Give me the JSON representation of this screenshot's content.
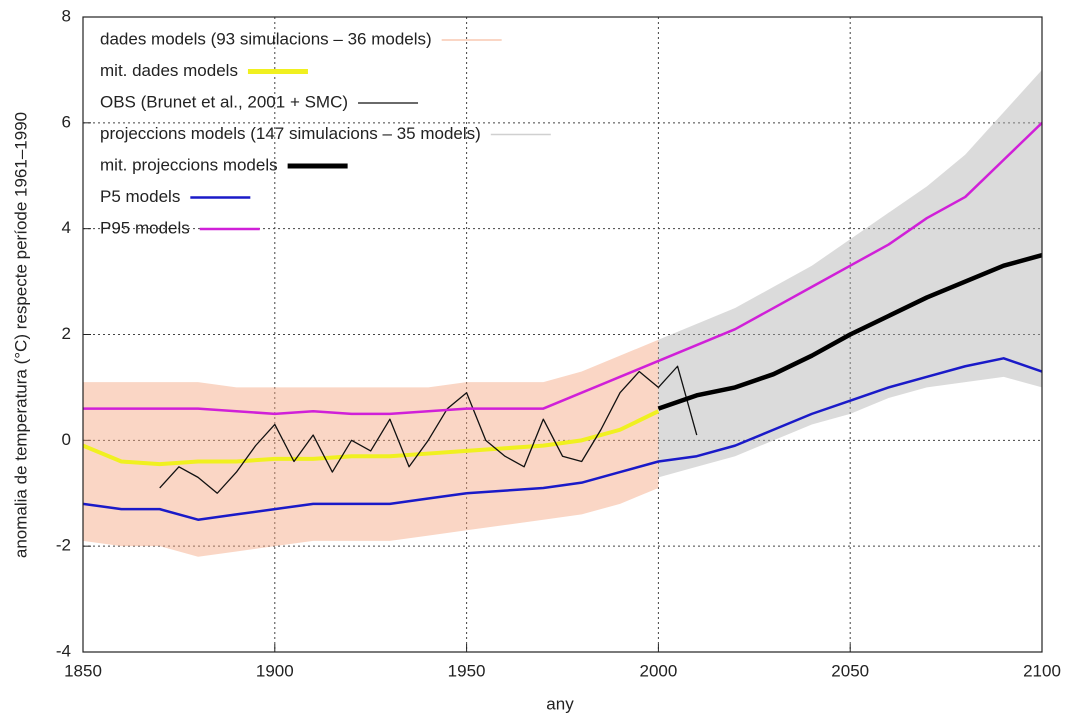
{
  "chart_data": {
    "type": "line",
    "x_label": "any",
    "y_label": "anomalia de temperatura (°C) respecte període 1961–1990",
    "xlim": [
      1850,
      2100
    ],
    "xticks": [
      1850,
      1900,
      1950,
      2000,
      2050,
      2100
    ],
    "ylim": [
      -4,
      8
    ],
    "yticks": [
      -4,
      -2,
      0,
      2,
      4,
      6,
      8
    ],
    "grid": true,
    "legend": "upper left",
    "series": [
      {
        "name": "dades models (93 simulacions – 36 models)",
        "color": "#f4a57f",
        "x": [
          1850,
          1860,
          1870,
          1880,
          1890,
          1900,
          1910,
          1920,
          1930,
          1940,
          1950,
          1960,
          1970,
          1980,
          1990,
          2000
        ],
        "low": [
          -1.9,
          -2.0,
          -2.0,
          -2.2,
          -2.1,
          -2.0,
          -1.9,
          -1.9,
          -1.9,
          -1.8,
          -1.7,
          -1.6,
          -1.5,
          -1.4,
          -1.2,
          -0.9
        ],
        "high": [
          1.1,
          1.1,
          1.1,
          1.1,
          1.0,
          1.0,
          1.0,
          1.0,
          1.0,
          1.0,
          1.1,
          1.1,
          1.1,
          1.3,
          1.6,
          1.9
        ]
      },
      {
        "name": "mit. dades models",
        "color": "#f0f020",
        "x": [
          1850,
          1860,
          1870,
          1880,
          1890,
          1900,
          1910,
          1920,
          1930,
          1940,
          1950,
          1960,
          1970,
          1980,
          1990,
          2000
        ],
        "values": [
          -0.1,
          -0.4,
          -0.45,
          -0.4,
          -0.4,
          -0.35,
          -0.35,
          -0.3,
          -0.3,
          -0.25,
          -0.2,
          -0.15,
          -0.1,
          0.0,
          0.2,
          0.55
        ]
      },
      {
        "name": "OBS (Brunet et al., 2001 + SMC)",
        "color": "#111111",
        "x": [
          1870,
          1875,
          1880,
          1885,
          1890,
          1895,
          1900,
          1905,
          1910,
          1915,
          1920,
          1925,
          1930,
          1935,
          1940,
          1945,
          1950,
          1955,
          1960,
          1965,
          1970,
          1975,
          1980,
          1985,
          1990,
          1995,
          2000,
          2005,
          2010
        ],
        "values": [
          -0.9,
          -0.5,
          -0.7,
          -1.0,
          -0.6,
          -0.1,
          0.3,
          -0.4,
          0.1,
          -0.6,
          0.0,
          -0.2,
          0.4,
          -0.5,
          0.0,
          0.6,
          0.9,
          0.0,
          -0.3,
          -0.5,
          0.4,
          -0.3,
          -0.4,
          0.2,
          0.9,
          1.3,
          1.0,
          1.4,
          0.1
        ]
      },
      {
        "name": "projeccions models (147 simulacions – 35 models)",
        "color": "#b0b0b0",
        "x": [
          2000,
          2010,
          2020,
          2030,
          2040,
          2050,
          2060,
          2070,
          2080,
          2090,
          2100
        ],
        "low": [
          -0.7,
          -0.5,
          -0.3,
          0.0,
          0.3,
          0.5,
          0.8,
          1.0,
          1.1,
          1.2,
          1.0
        ],
        "high": [
          1.9,
          2.2,
          2.5,
          2.9,
          3.3,
          3.8,
          4.3,
          4.8,
          5.4,
          6.2,
          7.0
        ]
      },
      {
        "name": "mit. projeccions models",
        "color": "#000000",
        "x": [
          2000,
          2010,
          2020,
          2030,
          2040,
          2050,
          2060,
          2070,
          2080,
          2090,
          2100
        ],
        "values": [
          0.6,
          0.85,
          1.0,
          1.25,
          1.6,
          2.0,
          2.35,
          2.7,
          3.0,
          3.3,
          3.5
        ]
      },
      {
        "name": "P5 models",
        "color": "#1a1ac8",
        "x": [
          1850,
          1860,
          1870,
          1880,
          1890,
          1900,
          1910,
          1920,
          1930,
          1940,
          1950,
          1960,
          1970,
          1980,
          1990,
          2000,
          2010,
          2020,
          2030,
          2040,
          2050,
          2060,
          2070,
          2080,
          2090,
          2100
        ],
        "values": [
          -1.2,
          -1.3,
          -1.3,
          -1.5,
          -1.4,
          -1.3,
          -1.2,
          -1.2,
          -1.2,
          -1.1,
          -1.0,
          -0.95,
          -0.9,
          -0.8,
          -0.6,
          -0.4,
          -0.3,
          -0.1,
          0.2,
          0.5,
          0.75,
          1.0,
          1.2,
          1.4,
          1.55,
          1.3
        ]
      },
      {
        "name": "P95 models",
        "color": "#d020d8",
        "x": [
          1850,
          1860,
          1870,
          1880,
          1890,
          1900,
          1910,
          1920,
          1930,
          1940,
          1950,
          1960,
          1970,
          1980,
          1990,
          2000,
          2010,
          2020,
          2030,
          2040,
          2050,
          2060,
          2070,
          2080,
          2090,
          2100
        ],
        "values": [
          0.6,
          0.6,
          0.6,
          0.6,
          0.55,
          0.5,
          0.55,
          0.5,
          0.5,
          0.55,
          0.6,
          0.6,
          0.6,
          0.9,
          1.2,
          1.5,
          1.8,
          2.1,
          2.5,
          2.9,
          3.3,
          3.7,
          4.2,
          4.6,
          5.3,
          6.0
        ]
      }
    ]
  }
}
